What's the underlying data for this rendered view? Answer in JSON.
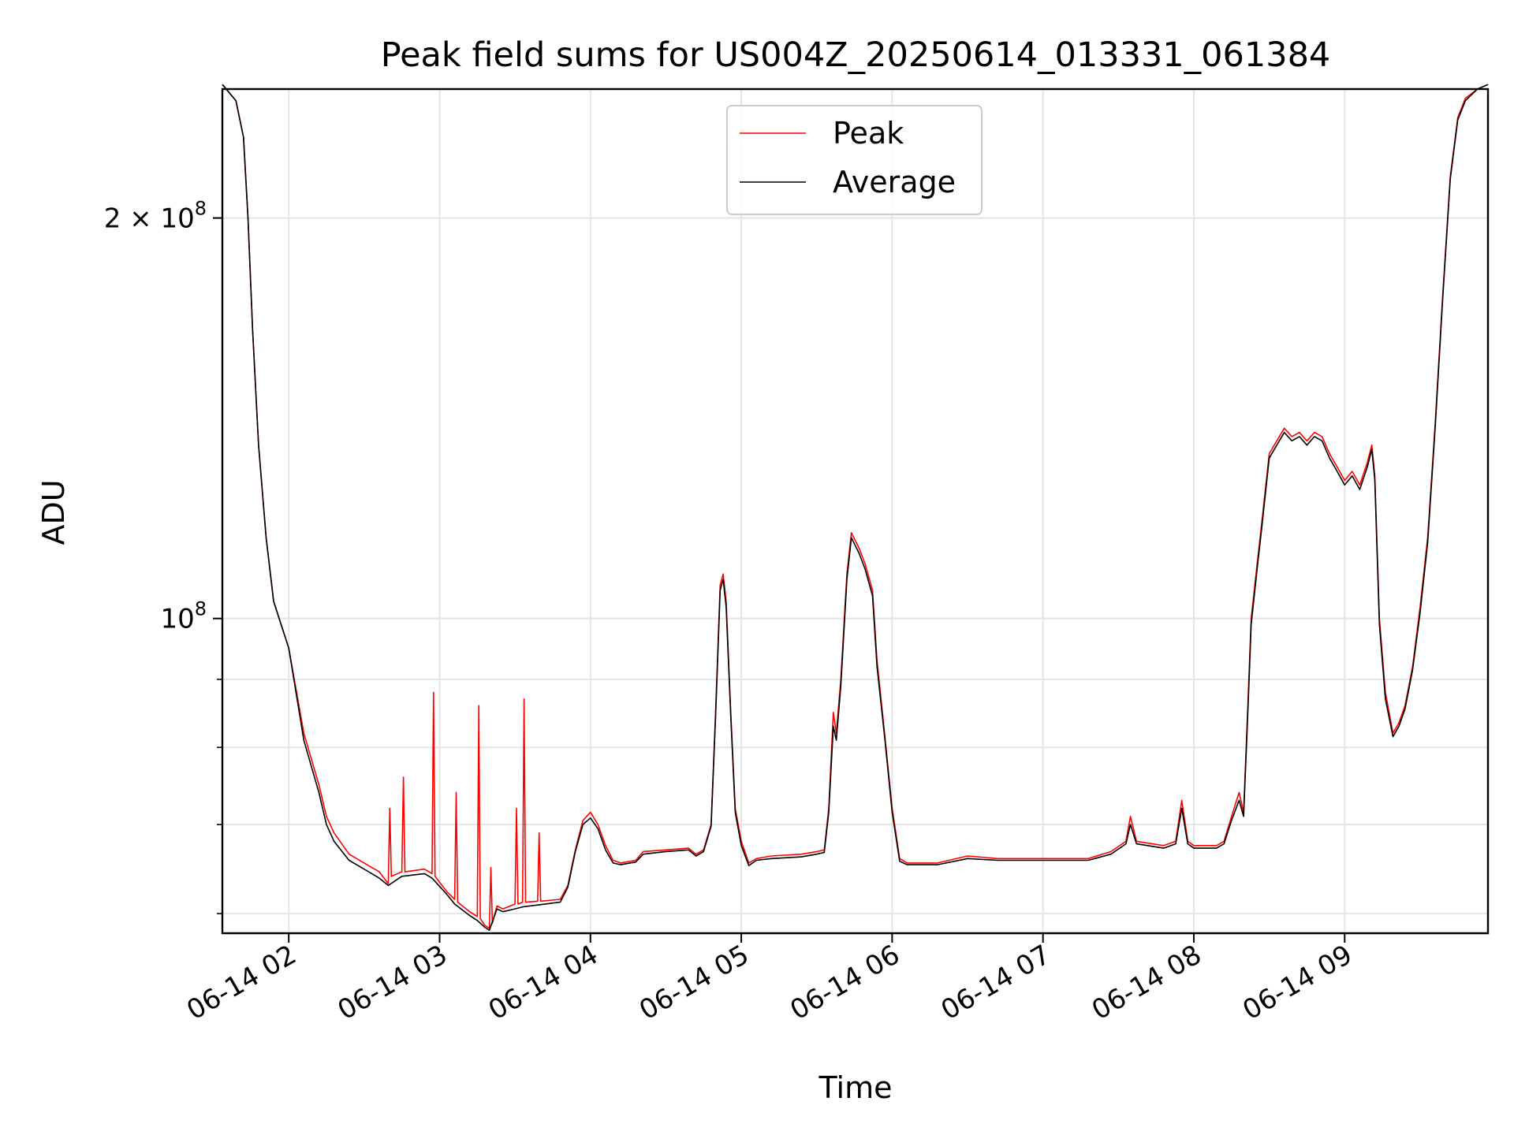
{
  "chart_data": {
    "type": "line",
    "title": "Peak field sums for US004Z_20250614_013331_061384",
    "xlabel": "Time",
    "ylabel": "ADU",
    "x_unit": "hours (2025-06-14, local clock)",
    "xlim": [
      1.56,
      9.95
    ],
    "ylim": [
      58000000,
      250000000
    ],
    "y_scale": "log",
    "grid": true,
    "legend_position": "upper-center",
    "x_ticks": [
      {
        "value": 2,
        "label": "06-14 02"
      },
      {
        "value": 3,
        "label": "06-14 03"
      },
      {
        "value": 4,
        "label": "06-14 04"
      },
      {
        "value": 5,
        "label": "06-14 05"
      },
      {
        "value": 6,
        "label": "06-14 06"
      },
      {
        "value": 7,
        "label": "06-14 07"
      },
      {
        "value": 8,
        "label": "06-14 08"
      },
      {
        "value": 9,
        "label": "06-14 09"
      }
    ],
    "y_ticks_major": [
      {
        "value": 100000000,
        "base": "10",
        "exp": "8",
        "coef": ""
      },
      {
        "value": 200000000,
        "base": "10",
        "exp": "8",
        "coef": "2 × "
      }
    ],
    "y_ticks_minor": [
      60000000,
      70000000,
      80000000,
      90000000
    ],
    "series": [
      {
        "name": "Peak",
        "color": "#ff0000",
        "points": [
          [
            1.56,
            252000000
          ],
          [
            1.65,
            245000000
          ],
          [
            1.7,
            230000000
          ],
          [
            1.73,
            200000000
          ],
          [
            1.76,
            165000000
          ],
          [
            1.8,
            135000000
          ],
          [
            1.85,
            115000000
          ],
          [
            1.9,
            103000000
          ],
          [
            2.0,
            95000000
          ],
          [
            2.1,
            82000000
          ],
          [
            2.2,
            75000000
          ],
          [
            2.25,
            71000000
          ],
          [
            2.3,
            69000000
          ],
          [
            2.4,
            66500000
          ],
          [
            2.5,
            65500000
          ],
          [
            2.6,
            64500000
          ],
          [
            2.66,
            63200000
          ],
          [
            2.67,
            72000000
          ],
          [
            2.68,
            64000000
          ],
          [
            2.75,
            64500000
          ],
          [
            2.76,
            76000000
          ],
          [
            2.77,
            64500000
          ],
          [
            2.9,
            64800000
          ],
          [
            2.95,
            64300000
          ],
          [
            2.96,
            88000000
          ],
          [
            2.97,
            64000000
          ],
          [
            3.05,
            62300000
          ],
          [
            3.1,
            61500000
          ],
          [
            3.11,
            74000000
          ],
          [
            3.12,
            61200000
          ],
          [
            3.2,
            60200000
          ],
          [
            3.25,
            59700000
          ],
          [
            3.26,
            86000000
          ],
          [
            3.27,
            59500000
          ],
          [
            3.3,
            58800000
          ],
          [
            3.33,
            58500000
          ],
          [
            3.34,
            65000000
          ],
          [
            3.35,
            59000000
          ],
          [
            3.38,
            60800000
          ],
          [
            3.42,
            60500000
          ],
          [
            3.5,
            61000000
          ],
          [
            3.51,
            72000000
          ],
          [
            3.52,
            61000000
          ],
          [
            3.55,
            61200000
          ],
          [
            3.56,
            87000000
          ],
          [
            3.57,
            61200000
          ],
          [
            3.65,
            61300000
          ],
          [
            3.66,
            69000000
          ],
          [
            3.67,
            61300000
          ],
          [
            3.8,
            61500000
          ],
          [
            3.85,
            63000000
          ],
          [
            3.9,
            67000000
          ],
          [
            3.95,
            70500000
          ],
          [
            4.0,
            71500000
          ],
          [
            4.05,
            70000000
          ],
          [
            4.1,
            67500000
          ],
          [
            4.15,
            65800000
          ],
          [
            4.2,
            65500000
          ],
          [
            4.3,
            65800000
          ],
          [
            4.35,
            66800000
          ],
          [
            4.5,
            67000000
          ],
          [
            4.65,
            67200000
          ],
          [
            4.7,
            66500000
          ],
          [
            4.75,
            67000000
          ],
          [
            4.8,
            70000000
          ],
          [
            4.83,
            85000000
          ],
          [
            4.86,
            106000000
          ],
          [
            4.88,
            108000000
          ],
          [
            4.9,
            103000000
          ],
          [
            4.93,
            85000000
          ],
          [
            4.96,
            72000000
          ],
          [
            5.0,
            68000000
          ],
          [
            5.05,
            65500000
          ],
          [
            5.1,
            66000000
          ],
          [
            5.2,
            66300000
          ],
          [
            5.4,
            66500000
          ],
          [
            5.5,
            66800000
          ],
          [
            5.55,
            67000000
          ],
          [
            5.58,
            72000000
          ],
          [
            5.61,
            85000000
          ],
          [
            5.63,
            82000000
          ],
          [
            5.66,
            90000000
          ],
          [
            5.7,
            108000000
          ],
          [
            5.73,
            116000000
          ],
          [
            5.78,
            113000000
          ],
          [
            5.82,
            110000000
          ],
          [
            5.87,
            105000000
          ],
          [
            5.9,
            93000000
          ],
          [
            5.95,
            82000000
          ],
          [
            6.0,
            72000000
          ],
          [
            6.05,
            66000000
          ],
          [
            6.1,
            65500000
          ],
          [
            6.3,
            65500000
          ],
          [
            6.5,
            66300000
          ],
          [
            6.7,
            66000000
          ],
          [
            6.9,
            66000000
          ],
          [
            7.0,
            66000000
          ],
          [
            7.3,
            66000000
          ],
          [
            7.45,
            66800000
          ],
          [
            7.55,
            68000000
          ],
          [
            7.58,
            71000000
          ],
          [
            7.62,
            68000000
          ],
          [
            7.8,
            67500000
          ],
          [
            7.88,
            68000000
          ],
          [
            7.92,
            73000000
          ],
          [
            7.96,
            68000000
          ],
          [
            8.0,
            67500000
          ],
          [
            8.15,
            67500000
          ],
          [
            8.2,
            68000000
          ],
          [
            8.25,
            71000000
          ],
          [
            8.3,
            74000000
          ],
          [
            8.33,
            71500000
          ],
          [
            8.36,
            87000000
          ],
          [
            8.38,
            100000000
          ],
          [
            8.42,
            110000000
          ],
          [
            8.45,
            118000000
          ],
          [
            8.5,
            133000000
          ],
          [
            8.55,
            136000000
          ],
          [
            8.6,
            139000000
          ],
          [
            8.65,
            137000000
          ],
          [
            8.7,
            138000000
          ],
          [
            8.75,
            136000000
          ],
          [
            8.8,
            138000000
          ],
          [
            8.85,
            137000000
          ],
          [
            8.9,
            133000000
          ],
          [
            8.95,
            130000000
          ],
          [
            9.0,
            127000000
          ],
          [
            9.05,
            129000000
          ],
          [
            9.1,
            126000000
          ],
          [
            9.15,
            131000000
          ],
          [
            9.18,
            135000000
          ],
          [
            9.2,
            128000000
          ],
          [
            9.23,
            100000000
          ],
          [
            9.27,
            88000000
          ],
          [
            9.32,
            82000000
          ],
          [
            9.36,
            83500000
          ],
          [
            9.4,
            86000000
          ],
          [
            9.45,
            92000000
          ],
          [
            9.5,
            102000000
          ],
          [
            9.55,
            115000000
          ],
          [
            9.6,
            140000000
          ],
          [
            9.65,
            175000000
          ],
          [
            9.7,
            215000000
          ],
          [
            9.75,
            238000000
          ],
          [
            9.8,
            246000000
          ],
          [
            9.88,
            250000000
          ],
          [
            9.95,
            252000000
          ]
        ]
      },
      {
        "name": "Average",
        "color": "#000000",
        "points": [
          [
            1.56,
            252000000
          ],
          [
            1.65,
            245000000
          ],
          [
            1.7,
            230000000
          ],
          [
            1.73,
            200000000
          ],
          [
            1.76,
            165000000
          ],
          [
            1.8,
            135000000
          ],
          [
            1.85,
            115000000
          ],
          [
            1.9,
            103000000
          ],
          [
            2.0,
            95000000
          ],
          [
            2.1,
            81000000
          ],
          [
            2.2,
            74000000
          ],
          [
            2.25,
            70000000
          ],
          [
            2.3,
            68000000
          ],
          [
            2.4,
            65800000
          ],
          [
            2.5,
            64800000
          ],
          [
            2.6,
            63800000
          ],
          [
            2.66,
            63000000
          ],
          [
            2.75,
            64000000
          ],
          [
            2.9,
            64300000
          ],
          [
            2.95,
            63800000
          ],
          [
            3.05,
            62000000
          ],
          [
            3.1,
            61000000
          ],
          [
            3.2,
            59800000
          ],
          [
            3.25,
            59300000
          ],
          [
            3.3,
            58600000
          ],
          [
            3.33,
            58300000
          ],
          [
            3.38,
            60500000
          ],
          [
            3.42,
            60200000
          ],
          [
            3.5,
            60500000
          ],
          [
            3.55,
            60700000
          ],
          [
            3.65,
            60900000
          ],
          [
            3.8,
            61200000
          ],
          [
            3.85,
            62800000
          ],
          [
            3.9,
            66800000
          ],
          [
            3.95,
            70000000
          ],
          [
            4.0,
            70800000
          ],
          [
            4.05,
            69500000
          ],
          [
            4.1,
            67000000
          ],
          [
            4.15,
            65500000
          ],
          [
            4.2,
            65300000
          ],
          [
            4.3,
            65600000
          ],
          [
            4.35,
            66500000
          ],
          [
            4.5,
            66800000
          ],
          [
            4.65,
            67000000
          ],
          [
            4.7,
            66300000
          ],
          [
            4.75,
            66800000
          ],
          [
            4.8,
            69800000
          ],
          [
            4.83,
            84500000
          ],
          [
            4.86,
            105000000
          ],
          [
            4.88,
            107000000
          ],
          [
            4.9,
            102000000
          ],
          [
            4.93,
            84500000
          ],
          [
            4.96,
            71500000
          ],
          [
            5.0,
            67500000
          ],
          [
            5.05,
            65200000
          ],
          [
            5.1,
            65800000
          ],
          [
            5.2,
            66000000
          ],
          [
            5.4,
            66200000
          ],
          [
            5.5,
            66500000
          ],
          [
            5.55,
            66700000
          ],
          [
            5.58,
            71500000
          ],
          [
            5.61,
            83000000
          ],
          [
            5.63,
            81000000
          ],
          [
            5.66,
            89000000
          ],
          [
            5.7,
            107000000
          ],
          [
            5.73,
            115000000
          ],
          [
            5.78,
            112000000
          ],
          [
            5.82,
            109000000
          ],
          [
            5.87,
            104000000
          ],
          [
            5.9,
            92000000
          ],
          [
            5.95,
            81500000
          ],
          [
            6.0,
            71500000
          ],
          [
            6.05,
            65700000
          ],
          [
            6.1,
            65300000
          ],
          [
            6.3,
            65300000
          ],
          [
            6.5,
            66000000
          ],
          [
            6.7,
            65800000
          ],
          [
            6.9,
            65800000
          ],
          [
            7.0,
            65800000
          ],
          [
            7.3,
            65800000
          ],
          [
            7.45,
            66500000
          ],
          [
            7.55,
            67700000
          ],
          [
            7.58,
            70000000
          ],
          [
            7.62,
            67700000
          ],
          [
            7.8,
            67200000
          ],
          [
            7.88,
            67700000
          ],
          [
            7.92,
            72000000
          ],
          [
            7.96,
            67700000
          ],
          [
            8.0,
            67200000
          ],
          [
            8.15,
            67200000
          ],
          [
            8.2,
            67700000
          ],
          [
            8.25,
            70500000
          ],
          [
            8.3,
            73000000
          ],
          [
            8.33,
            71000000
          ],
          [
            8.36,
            86000000
          ],
          [
            8.38,
            99000000
          ],
          [
            8.42,
            109000000
          ],
          [
            8.45,
            117000000
          ],
          [
            8.5,
            132000000
          ],
          [
            8.55,
            135000000
          ],
          [
            8.6,
            138000000
          ],
          [
            8.65,
            136000000
          ],
          [
            8.7,
            137000000
          ],
          [
            8.75,
            135000000
          ],
          [
            8.8,
            137000000
          ],
          [
            8.85,
            136000000
          ],
          [
            8.9,
            132000000
          ],
          [
            8.95,
            129000000
          ],
          [
            9.0,
            126000000
          ],
          [
            9.05,
            128000000
          ],
          [
            9.1,
            125000000
          ],
          [
            9.15,
            130000000
          ],
          [
            9.18,
            134000000
          ],
          [
            9.2,
            127000000
          ],
          [
            9.23,
            99000000
          ],
          [
            9.27,
            87000000
          ],
          [
            9.32,
            81500000
          ],
          [
            9.36,
            83000000
          ],
          [
            9.4,
            85500000
          ],
          [
            9.45,
            91500000
          ],
          [
            9.5,
            101000000
          ],
          [
            9.55,
            114000000
          ],
          [
            9.6,
            139000000
          ],
          [
            9.65,
            174000000
          ],
          [
            9.7,
            214000000
          ],
          [
            9.75,
            237000000
          ],
          [
            9.8,
            245000000
          ],
          [
            9.88,
            250000000
          ],
          [
            9.95,
            252000000
          ]
        ]
      }
    ]
  }
}
